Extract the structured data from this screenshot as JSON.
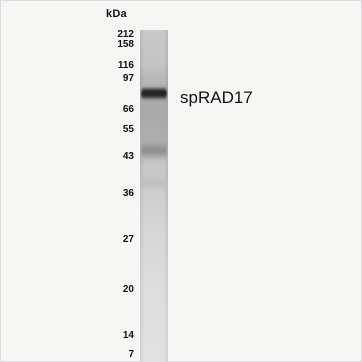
{
  "blot": {
    "unit_label": "kDa",
    "marker_labels": [
      "212",
      "158",
      "116",
      "97",
      "66",
      "55",
      "43",
      "36",
      "27",
      "20",
      "14",
      "7"
    ],
    "protein_label": "spRAD17"
  }
}
